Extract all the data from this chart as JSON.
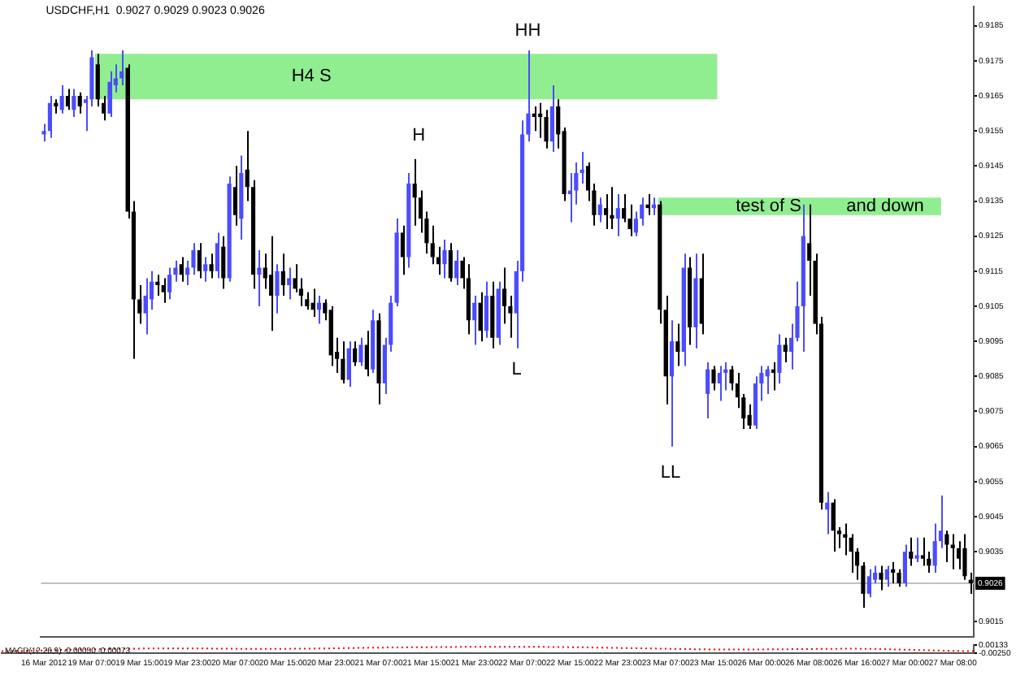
{
  "chart_data": [
    {
      "type": "candlestick",
      "title": "USDCHF,H1  0.9027 0.9029 0.9023 0.9026",
      "categories": [
        "16 Mar 2012",
        null,
        null,
        null,
        null,
        null,
        null,
        null,
        "19 Mar 07:00",
        null,
        null,
        null,
        null,
        null,
        null,
        null,
        "19 Mar 15:00",
        null,
        null,
        null,
        null,
        null,
        null,
        null,
        "19 Mar 23:00",
        null,
        null,
        null,
        null,
        null,
        null,
        null,
        "20 Mar 07:00",
        null,
        null,
        null,
        null,
        null,
        null,
        null,
        "20 Mar 15:00",
        null,
        null,
        null,
        null,
        null,
        null,
        null,
        "20 Mar 23:00",
        null,
        null,
        null,
        null,
        null,
        null,
        null,
        "21 Mar 07:00",
        null,
        null,
        null,
        null,
        null,
        null,
        null,
        "21 Mar 15:00",
        null,
        null,
        null,
        null,
        null,
        null,
        null,
        "21 Mar 23:00",
        null,
        null,
        null,
        null,
        null,
        null,
        null,
        "22 Mar 07:00",
        null,
        null,
        null,
        null,
        null,
        null,
        null,
        "22 Mar 15:00",
        null,
        null,
        null,
        null,
        null,
        null,
        null,
        "22 Mar 23:00",
        null,
        null,
        null,
        null,
        null,
        null,
        null,
        "23 Mar 07:00",
        null,
        null,
        null,
        null,
        null,
        null,
        null,
        "23 Mar 15:00",
        null,
        null,
        null,
        null,
        null,
        null,
        null,
        "26 Mar 00:00",
        null,
        null,
        null,
        null,
        null,
        null,
        null,
        "26 Mar 08:00",
        null,
        null,
        null,
        null,
        null,
        null,
        null,
        "26 Mar 16:00",
        null,
        null,
        null,
        null,
        null,
        null,
        null,
        "27 Mar 00:00",
        null,
        null,
        null,
        null,
        null,
        null,
        null,
        "27 Mar 08:00",
        null,
        null,
        null
      ],
      "ohlc": [
        [
          0.9154,
          0.9157,
          0.9152,
          0.9155
        ],
        [
          0.9155,
          0.9165,
          0.9153,
          0.9163
        ],
        [
          0.9163,
          0.9164,
          0.916,
          0.9162
        ],
        [
          0.9161,
          0.9168,
          0.916,
          0.9165
        ],
        [
          0.9165,
          0.9167,
          0.9161,
          0.9162
        ],
        [
          0.9161,
          0.9167,
          0.9159,
          0.9165
        ],
        [
          0.9165,
          0.9166,
          0.916,
          0.9162
        ],
        [
          0.9163,
          0.9165,
          0.9155,
          0.9164
        ],
        [
          0.9164,
          0.9178,
          0.9162,
          0.9176
        ],
        [
          0.9174,
          0.9177,
          0.9162,
          0.9164
        ],
        [
          0.9163,
          0.9165,
          0.9158,
          0.916
        ],
        [
          0.916,
          0.9172,
          0.9159,
          0.9169
        ],
        [
          0.9168,
          0.9174,
          0.9166,
          0.917
        ],
        [
          0.917,
          0.9178,
          0.9168,
          0.9172
        ],
        [
          0.9173,
          0.9174,
          0.913,
          0.9132
        ],
        [
          0.9132,
          0.9135,
          0.909,
          0.9107
        ],
        [
          0.9107,
          0.9111,
          0.91,
          0.9103
        ],
        [
          0.9103,
          0.9113,
          0.9097,
          0.9108
        ],
        [
          0.9107,
          0.9115,
          0.9104,
          0.9112
        ],
        [
          0.9112,
          0.9114,
          0.9108,
          0.9111
        ],
        [
          0.9111,
          0.9113,
          0.9106,
          0.9109
        ],
        [
          0.9109,
          0.9116,
          0.9107,
          0.9114
        ],
        [
          0.9114,
          0.9118,
          0.9112,
          0.9116
        ],
        [
          0.9117,
          0.9119,
          0.9112,
          0.9114
        ],
        [
          0.9114,
          0.9118,
          0.9111,
          0.9116
        ],
        [
          0.9116,
          0.9123,
          0.9114,
          0.9121
        ],
        [
          0.9121,
          0.9123,
          0.9113,
          0.9115
        ],
        [
          0.9115,
          0.9119,
          0.9112,
          0.9117
        ],
        [
          0.9117,
          0.912,
          0.9113,
          0.9115
        ],
        [
          0.9115,
          0.9126,
          0.9113,
          0.9123
        ],
        [
          0.9122,
          0.9125,
          0.911,
          0.9113
        ],
        [
          0.9113,
          0.9142,
          0.9112,
          0.914
        ],
        [
          0.9139,
          0.9145,
          0.9128,
          0.9131
        ],
        [
          0.913,
          0.9148,
          0.9124,
          0.9143
        ],
        [
          0.9144,
          0.9155,
          0.9135,
          0.9139
        ],
        [
          0.9139,
          0.9141,
          0.911,
          0.9114
        ],
        [
          0.9114,
          0.9121,
          0.9105,
          0.9116
        ],
        [
          0.9116,
          0.912,
          0.911,
          0.9113
        ],
        [
          0.9114,
          0.9125,
          0.9098,
          0.9108
        ],
        [
          0.9108,
          0.9117,
          0.9103,
          0.9115
        ],
        [
          0.9115,
          0.912,
          0.9108,
          0.9111
        ],
        [
          0.9111,
          0.9116,
          0.9107,
          0.9113
        ],
        [
          0.9113,
          0.9117,
          0.9109,
          0.911
        ],
        [
          0.911,
          0.9113,
          0.9105,
          0.9108
        ],
        [
          0.9107,
          0.9109,
          0.9104,
          0.9105
        ],
        [
          0.9106,
          0.911,
          0.9102,
          0.9104
        ],
        [
          0.9104,
          0.9108,
          0.91,
          0.9106
        ],
        [
          0.9106,
          0.9107,
          0.9101,
          0.9103
        ],
        [
          0.9104,
          0.9105,
          0.9088,
          0.9091
        ],
        [
          0.9092,
          0.9096,
          0.9086,
          0.909
        ],
        [
          0.909,
          0.9095,
          0.9083,
          0.9084
        ],
        [
          0.9084,
          0.9095,
          0.9082,
          0.9093
        ],
        [
          0.9093,
          0.9095,
          0.9088,
          0.9089
        ],
        [
          0.9089,
          0.9096,
          0.9088,
          0.9094
        ],
        [
          0.9094,
          0.9098,
          0.9085,
          0.9087
        ],
        [
          0.9087,
          0.9104,
          0.9086,
          0.9101
        ],
        [
          0.9101,
          0.9103,
          0.9077,
          0.9083
        ],
        [
          0.9083,
          0.9096,
          0.908,
          0.9094
        ],
        [
          0.9094,
          0.9108,
          0.9092,
          0.9106
        ],
        [
          0.9106,
          0.913,
          0.9105,
          0.9126
        ],
        [
          0.9126,
          0.9128,
          0.9114,
          0.9119
        ],
        [
          0.9119,
          0.9143,
          0.9116,
          0.914
        ],
        [
          0.914,
          0.9147,
          0.9128,
          0.9136
        ],
        [
          0.9136,
          0.9138,
          0.9126,
          0.913
        ],
        [
          0.913,
          0.9132,
          0.912,
          0.9123
        ],
        [
          0.9123,
          0.9128,
          0.9117,
          0.9119
        ],
        [
          0.9119,
          0.9122,
          0.9114,
          0.9117
        ],
        [
          0.9117,
          0.9124,
          0.9113,
          0.9121
        ],
        [
          0.9121,
          0.9123,
          0.9112,
          0.9113
        ],
        [
          0.9113,
          0.9121,
          0.9111,
          0.9118
        ],
        [
          0.9118,
          0.9119,
          0.911,
          0.9113
        ],
        [
          0.9113,
          0.9117,
          0.9097,
          0.9101
        ],
        [
          0.9101,
          0.9108,
          0.9094,
          0.9106
        ],
        [
          0.9106,
          0.9109,
          0.9095,
          0.9098
        ],
        [
          0.9098,
          0.9112,
          0.9096,
          0.9108
        ],
        [
          0.9108,
          0.9112,
          0.9093,
          0.9096
        ],
        [
          0.9096,
          0.9112,
          0.9094,
          0.911
        ],
        [
          0.911,
          0.9116,
          0.91,
          0.9105
        ],
        [
          0.9105,
          0.9108,
          0.9096,
          0.9103
        ],
        [
          0.9103,
          0.9118,
          0.9093,
          0.9115
        ],
        [
          0.9115,
          0.9158,
          0.9112,
          0.9154
        ],
        [
          0.9154,
          0.9178,
          0.9152,
          0.916
        ],
        [
          0.916,
          0.9162,
          0.9155,
          0.9159
        ],
        [
          0.916,
          0.9163,
          0.9153,
          0.9159
        ],
        [
          0.9159,
          0.9161,
          0.915,
          0.9152
        ],
        [
          0.9152,
          0.9168,
          0.9149,
          0.9162
        ],
        [
          0.9162,
          0.9164,
          0.915,
          0.9154
        ],
        [
          0.9155,
          0.9156,
          0.9135,
          0.9137
        ],
        [
          0.9137,
          0.9143,
          0.9129,
          0.9138
        ],
        [
          0.9138,
          0.9146,
          0.9134,
          0.9143
        ],
        [
          0.9143,
          0.9149,
          0.914,
          0.9144
        ],
        [
          0.9145,
          0.9146,
          0.9135,
          0.9138
        ],
        [
          0.9138,
          0.914,
          0.9128,
          0.9131
        ],
        [
          0.9131,
          0.9136,
          0.9129,
          0.9134
        ],
        [
          0.9133,
          0.9137,
          0.9127,
          0.9131
        ],
        [
          0.9131,
          0.9139,
          0.9127,
          0.913
        ],
        [
          0.913,
          0.9137,
          0.9125,
          0.9133
        ],
        [
          0.9133,
          0.9137,
          0.9129,
          0.913
        ],
        [
          0.913,
          0.9134,
          0.9125,
          0.9127
        ],
        [
          0.9126,
          0.9132,
          0.9125,
          0.913
        ],
        [
          0.913,
          0.9136,
          0.9128,
          0.9134
        ],
        [
          0.9134,
          0.9137,
          0.9131,
          0.9133
        ],
        [
          0.9133,
          0.9136,
          0.9131,
          0.9134
        ],
        [
          0.9134,
          0.9135,
          0.91,
          0.9104
        ],
        [
          0.9104,
          0.9108,
          0.9077,
          0.9085
        ],
        [
          0.9085,
          0.9101,
          0.9065,
          0.9095
        ],
        [
          0.9095,
          0.91,
          0.9088,
          0.9092
        ],
        [
          0.9092,
          0.912,
          0.9088,
          0.9116
        ],
        [
          0.9116,
          0.9119,
          0.9094,
          0.9099
        ],
        [
          0.9099,
          0.912,
          0.9093,
          0.9113
        ],
        [
          0.9113,
          0.912,
          0.9097,
          0.91
        ],
        [
          0.908,
          0.9089,
          0.9073,
          0.9087
        ],
        [
          0.9087,
          0.9088,
          0.9081,
          0.9083
        ],
        [
          0.9083,
          0.9088,
          0.9078,
          0.9086
        ],
        [
          0.9086,
          0.9089,
          0.9081,
          0.9087
        ],
        [
          0.9087,
          0.9088,
          0.9081,
          0.9083
        ],
        [
          0.9083,
          0.9086,
          0.9076,
          0.9079
        ],
        [
          0.9079,
          0.908,
          0.907,
          0.9073
        ],
        [
          0.9074,
          0.9077,
          0.907,
          0.9071
        ],
        [
          0.9071,
          0.9085,
          0.907,
          0.9083
        ],
        [
          0.9083,
          0.9088,
          0.9078,
          0.9086
        ],
        [
          0.9085,
          0.9088,
          0.908,
          0.9087
        ],
        [
          0.9087,
          0.9089,
          0.9081,
          0.9086
        ],
        [
          0.9086,
          0.9097,
          0.9083,
          0.9094
        ],
        [
          0.9094,
          0.9096,
          0.9089,
          0.9092
        ],
        [
          0.9092,
          0.91,
          0.9087,
          0.9096
        ],
        [
          0.9096,
          0.9112,
          0.9095,
          0.9105
        ],
        [
          0.9105,
          0.9134,
          0.9092,
          0.9125
        ],
        [
          0.9123,
          0.9134,
          0.9108,
          0.9118
        ],
        [
          0.9118,
          0.912,
          0.9097,
          0.91
        ],
        [
          0.91,
          0.9102,
          0.9047,
          0.9049
        ],
        [
          0.9047,
          0.9052,
          0.904,
          0.9049
        ],
        [
          0.9049,
          0.905,
          0.9035,
          0.9041
        ],
        [
          0.9041,
          0.9042,
          0.9036,
          0.904
        ],
        [
          0.904,
          0.9043,
          0.9034,
          0.9039
        ],
        [
          0.9039,
          0.904,
          0.9029,
          0.9035
        ],
        [
          0.9035,
          0.9036,
          0.9027,
          0.9031
        ],
        [
          0.9031,
          0.9032,
          0.9019,
          0.9023
        ],
        [
          0.9023,
          0.903,
          0.9022,
          0.9028
        ],
        [
          0.9027,
          0.9031,
          0.9026,
          0.9029
        ],
        [
          0.9029,
          0.9031,
          0.9024,
          0.9027
        ],
        [
          0.9027,
          0.9031,
          0.9025,
          0.903
        ],
        [
          0.903,
          0.9032,
          0.9026,
          0.9029
        ],
        [
          0.9029,
          0.903,
          0.9025,
          0.9026
        ],
        [
          0.9026,
          0.9037,
          0.9025,
          0.9035
        ],
        [
          0.9035,
          0.9039,
          0.9031,
          0.9033
        ],
        [
          0.9033,
          0.9039,
          0.9032,
          0.9034
        ],
        [
          0.9034,
          0.9039,
          0.9031,
          0.9033
        ],
        [
          0.9033,
          0.9035,
          0.9029,
          0.9031
        ],
        [
          0.9031,
          0.9043,
          0.9029,
          0.9038
        ],
        [
          0.9038,
          0.9051,
          0.9036,
          0.9041
        ],
        [
          0.904,
          0.9041,
          0.9032,
          0.9037
        ],
        [
          0.9037,
          0.904,
          0.903,
          0.9036
        ],
        [
          0.9036,
          0.9038,
          0.903,
          0.9033
        ],
        [
          0.9036,
          0.904,
          0.9027,
          0.9028
        ],
        [
          0.9027,
          0.9029,
          0.9023,
          0.9026
        ]
      ],
      "colors": [
        "#4b4bff",
        "#4b4bff",
        "#000000",
        "#4b4bff",
        "#000000",
        "#4b4bff",
        "#000000",
        "#4b4bff",
        "#4b4bff",
        "#000000",
        "#000000",
        "#4b4bff",
        "#4b4bff",
        "#4b4bff",
        "#000000",
        "#000000",
        "#000000",
        "#4b4bff",
        "#4b4bff",
        "#000000",
        "#000000",
        "#4b4bff",
        "#4b4bff",
        "#000000",
        "#4b4bff",
        "#4b4bff",
        "#000000",
        "#4b4bff",
        "#000000",
        "#4b4bff",
        "#000000",
        "#4b4bff",
        "#000000",
        "#4b4bff",
        "#000000",
        "#000000",
        "#4b4bff",
        "#000000",
        "#000000",
        "#4b4bff",
        "#000000",
        "#4b4bff",
        "#000000",
        "#000000",
        "#000000",
        "#000000",
        "#4b4bff",
        "#000000",
        "#000000",
        "#000000",
        "#000000",
        "#4b4bff",
        "#000000",
        "#4b4bff",
        "#000000",
        "#4b4bff",
        "#000000",
        "#4b4bff",
        "#4b4bff",
        "#4b4bff",
        "#000000",
        "#4b4bff",
        "#000000",
        "#000000",
        "#000000",
        "#000000",
        "#000000",
        "#4b4bff",
        "#000000",
        "#4b4bff",
        "#000000",
        "#000000",
        "#4b4bff",
        "#000000",
        "#4b4bff",
        "#000000",
        "#4b4bff",
        "#000000",
        "#000000",
        "#4b4bff",
        "#4b4bff",
        "#4b4bff",
        "#000000",
        "#000000",
        "#000000",
        "#4b4bff",
        "#000000",
        "#000000",
        "#4b4bff",
        "#4b4bff",
        "#4b4bff",
        "#000000",
        "#000000",
        "#4b4bff",
        "#000000",
        "#000000",
        "#4b4bff",
        "#000000",
        "#000000",
        "#4b4bff",
        "#4b4bff",
        "#000000",
        "#4b4bff",
        "#000000",
        "#000000",
        "#4b4bff",
        "#000000",
        "#4b4bff",
        "#000000",
        "#4b4bff",
        "#000000",
        "#4b4bff",
        "#000000",
        "#4b4bff",
        "#4b4bff",
        "#000000",
        "#000000",
        "#000000",
        "#000000",
        "#4b4bff",
        "#4b4bff",
        "#4b4bff",
        "#000000",
        "#4b4bff",
        "#000000",
        "#4b4bff",
        "#4b4bff",
        "#4b4bff",
        "#000000",
        "#000000",
        "#000000",
        "#4b4bff",
        "#000000",
        "#000000",
        "#000000",
        "#000000",
        "#000000",
        "#000000",
        "#4b4bff",
        "#4b4bff",
        "#000000",
        "#4b4bff",
        "#000000",
        "#000000",
        "#4b4bff",
        "#000000",
        "#4b4bff",
        "#000000",
        "#000000",
        "#4b4bff",
        "#4b4bff",
        "#000000",
        "#000000",
        "#000000",
        "#000000",
        "#000000"
      ],
      "ylim": [
        0.90107,
        0.91905
      ],
      "yticks": [
        {
          "value": 0.9185,
          "label": "0.9185"
        },
        {
          "value": 0.9175,
          "label": "0.9175"
        },
        {
          "value": 0.9165,
          "label": "0.9165"
        },
        {
          "value": 0.9155,
          "label": "0.9155"
        },
        {
          "value": 0.9145,
          "label": "0.9145"
        },
        {
          "value": 0.9135,
          "label": "0.9135"
        },
        {
          "value": 0.9125,
          "label": "0.9125"
        },
        {
          "value": 0.9115,
          "label": "0.9115"
        },
        {
          "value": 0.9105,
          "label": "0.9105"
        },
        {
          "value": 0.9095,
          "label": "0.9095"
        },
        {
          "value": 0.9085,
          "label": "0.9085"
        },
        {
          "value": 0.9075,
          "label": "0.9075"
        },
        {
          "value": 0.9065,
          "label": "0.9065"
        },
        {
          "value": 0.9055,
          "label": "0.9055"
        },
        {
          "value": 0.9045,
          "label": "0.9045"
        },
        {
          "value": 0.9035,
          "label": "0.9035"
        },
        {
          "value": 0.9015,
          "label": "0.9015"
        }
      ],
      "ref_lines": [
        {
          "axis": "y",
          "value": 0.9026,
          "label": "0.9026",
          "color": "#c0c0c0"
        }
      ],
      "bands": [
        {
          "axis": "y",
          "from": 0.9164,
          "to": 0.9177,
          "color": "#90ee90",
          "label": "H4 S"
        },
        {
          "axis": "y",
          "from": 0.9131,
          "to": 0.9136,
          "color": "#90ee90",
          "label": "test of S"
        }
      ],
      "annotations": [
        "H",
        {
          "text": "HH",
          "y": 0.9178
        },
        {
          "text": "L",
          "y": 0.9093
        },
        "LL",
        "and down"
      ]
    },
    {
      "type": "line",
      "title": "MACD(12,26,9) -0.00050 -0.00073",
      "categories": [
        null,
        null,
        null,
        null,
        null,
        null,
        null,
        null,
        null,
        null,
        null,
        null,
        null,
        null,
        null,
        null,
        null,
        null,
        null,
        null,
        null,
        null,
        null,
        null,
        null,
        null,
        null,
        null,
        null,
        null,
        null,
        null,
        null,
        null,
        null,
        null,
        null,
        null,
        null,
        null
      ],
      "series": [
        {
          "color": "#ff0000",
          "values": [
            -0.0016,
            -0.0014,
            -0.0011,
            -0.0008,
            -0.0006,
            -0.0004,
            -0.0003,
            -0.0003,
            -0.0003,
            -0.0004,
            -0.0005,
            -0.0005,
            -0.0004,
            -0.0003,
            -0.0001,
            0.0001,
            0.0002,
            0.0003,
            0.0004,
            0.0005,
            0.0005,
            0.0005,
            0.0004,
            0.0003,
            0.0001,
            -0.0001,
            -0.0003,
            -0.0005,
            -0.0007,
            -0.0008,
            -0.0008,
            -0.0007,
            -0.0006,
            -0.0005,
            -0.0004,
            -0.0005,
            -0.0008,
            -0.0011,
            -0.0014,
            -0.0016
          ]
        }
      ],
      "ylim": [
        -0.0025,
        0.00133
      ],
      "yticks": [
        {
          "value": 0.00133,
          "label": "0.00133"
        },
        {
          "value": -0.0025,
          "label": "-0.00250"
        }
      ],
      "line_style": "dotted",
      "marker": "none",
      "tick_labels": "y"
    }
  ]
}
